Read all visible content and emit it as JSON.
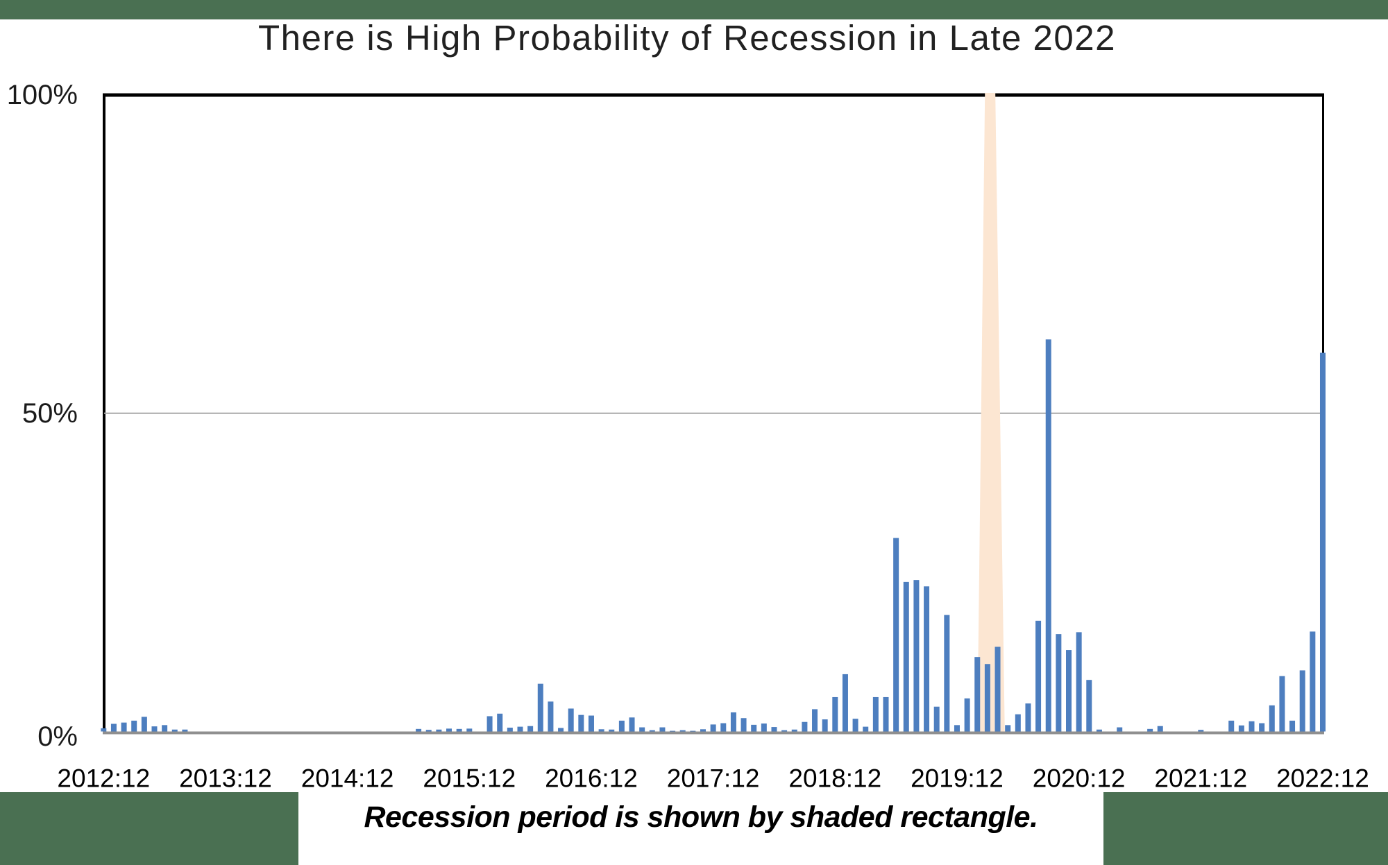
{
  "page": {
    "background": "#ffffff",
    "top_accent_color": "#4a7052",
    "bottom_accent_color": "#4a7052"
  },
  "chart_data": {
    "type": "bar",
    "title": "There is High Probability of Recession in Late 2022",
    "caption": "Recession period is shown by shaded rectangle.",
    "xlabel": "",
    "ylabel": "",
    "ylim": [
      0,
      100
    ],
    "yticks": [
      0,
      50,
      100
    ],
    "ytick_labels": [
      "0%",
      "50%",
      "100%"
    ],
    "grid": "single horizontal gridline at 50%",
    "legend": "none",
    "x_frequency": "monthly",
    "x_start": "2012:12",
    "x_end": "2022:12",
    "xtick_labels": [
      "2012:12",
      "2013:12",
      "2014:12",
      "2015:12",
      "2016:12",
      "2017:12",
      "2018:12",
      "2019:12",
      "2020:12",
      "2021:12",
      "2022:12"
    ],
    "xtick_indices": [
      0,
      12,
      24,
      36,
      48,
      60,
      72,
      84,
      96,
      108,
      120
    ],
    "bar_color": "#4d7ebf",
    "axis_color": "#8f8f8f",
    "gridline_color": "#a9a9a9",
    "border_color": "#000000",
    "text_color": "#1a1a1a",
    "recession_shading": {
      "label": "Recession period",
      "from_month": "2020:02",
      "to_month": "2020:04",
      "color": "#fce6d2",
      "start_index_bottom": 86.0,
      "end_index_bottom": 88.7,
      "start_index_top": 86.75,
      "end_index_top": 87.77
    },
    "x_months": [
      "2012:12",
      "2013:01",
      "2013:02",
      "2013:03",
      "2013:04",
      "2013:05",
      "2013:06",
      "2013:07",
      "2013:08",
      "2013:09",
      "2013:10",
      "2013:11",
      "2013:12",
      "2014:01",
      "2014:02",
      "2014:03",
      "2014:04",
      "2014:05",
      "2014:06",
      "2014:07",
      "2014:08",
      "2014:09",
      "2014:10",
      "2014:11",
      "2014:12",
      "2015:01",
      "2015:02",
      "2015:03",
      "2015:04",
      "2015:05",
      "2015:06",
      "2015:07",
      "2015:08",
      "2015:09",
      "2015:10",
      "2015:11",
      "2015:12",
      "2016:01",
      "2016:02",
      "2016:03",
      "2016:04",
      "2016:05",
      "2016:06",
      "2016:07",
      "2016:08",
      "2016:09",
      "2016:10",
      "2016:11",
      "2016:12",
      "2017:01",
      "2017:02",
      "2017:03",
      "2017:04",
      "2017:05",
      "2017:06",
      "2017:07",
      "2017:08",
      "2017:09",
      "2017:10",
      "2017:11",
      "2017:12",
      "2018:01",
      "2018:02",
      "2018:03",
      "2018:04",
      "2018:05",
      "2018:06",
      "2018:07",
      "2018:08",
      "2018:09",
      "2018:10",
      "2018:11",
      "2018:12",
      "2019:01",
      "2019:02",
      "2019:03",
      "2019:04",
      "2019:05",
      "2019:06",
      "2019:07",
      "2019:08",
      "2019:09",
      "2019:10",
      "2019:11",
      "2019:12",
      "2020:01",
      "2020:02",
      "2020:03",
      "2020:04",
      "2020:05",
      "2020:06",
      "2020:07",
      "2020:08",
      "2020:09",
      "2020:10",
      "2020:11",
      "2020:12",
      "2021:01",
      "2021:02",
      "2021:03",
      "2021:04",
      "2021:05",
      "2021:06",
      "2021:07",
      "2021:08",
      "2021:09",
      "2021:10",
      "2021:11",
      "2021:12",
      "2022:01",
      "2022:02",
      "2022:03",
      "2022:04",
      "2022:05",
      "2022:06",
      "2022:07",
      "2022:08",
      "2022:09",
      "2022:10",
      "2022:11",
      "2022:12"
    ],
    "values": [
      0.5,
      1.2,
      1.4,
      1.7,
      2.3,
      0.8,
      1.0,
      0.3,
      0.3,
      0,
      0,
      0,
      0,
      0,
      0,
      0,
      0,
      0,
      0,
      0,
      0,
      0,
      0,
      0,
      0,
      0,
      0,
      0,
      0,
      0,
      0,
      0.4,
      0.25,
      0.3,
      0.45,
      0.4,
      0.45,
      0,
      2.4,
      2.8,
      0.6,
      0.75,
      0.85,
      7.5,
      4.7,
      0.55,
      3.6,
      2.6,
      2.5,
      0.35,
      0.3,
      1.7,
      2.2,
      0.65,
      0.2,
      0.65,
      0.1,
      0.2,
      0.1,
      0.35,
      1.1,
      1.3,
      3.0,
      2.1,
      1.05,
      1.25,
      0.7,
      0.2,
      0.3,
      1.5,
      3.5,
      1.9,
      5.4,
      9.0,
      2.0,
      0.75,
      5.4,
      5.4,
      30.4,
      23.5,
      23.8,
      22.8,
      3.9,
      18.3,
      1.0,
      5.2,
      11.7,
      10.6,
      13.3,
      1.0,
      2.7,
      4.4,
      17.4,
      61.6,
      15.3,
      12.8,
      15.6,
      8.1,
      0.3,
      0,
      0.65,
      0,
      0,
      0.4,
      0.85,
      0,
      0,
      0,
      0.25,
      0,
      0,
      1.7,
      0.95,
      1.6,
      1.3,
      4.1,
      8.7,
      1.7,
      9.6,
      15.7,
      59.5
    ]
  }
}
